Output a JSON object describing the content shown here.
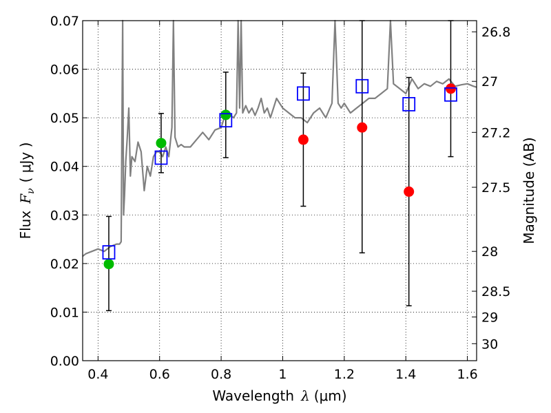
{
  "chart_data": {
    "type": "scatter",
    "x_label_text": "Wavelength",
    "x_label_symbol": "λ",
    "x_label_units": "(μm)",
    "y_label_text": "Flux",
    "y_label_symbol": "F",
    "y_label_subscript": "ν",
    "y_label_units": "( μJy )",
    "right_label": "Magnitude (AB)",
    "xlim": [
      0.35,
      1.63
    ],
    "ylim": [
      0.0,
      0.07
    ],
    "grid": true,
    "x_ticks": [
      {
        "value": 0.4,
        "label": "0.4"
      },
      {
        "value": 0.6,
        "label": "0.6"
      },
      {
        "value": 0.8,
        "label": "0.8"
      },
      {
        "value": 1.0,
        "label": "1"
      },
      {
        "value": 1.2,
        "label": "1.2"
      },
      {
        "value": 1.4,
        "label": "1.4"
      },
      {
        "value": 1.6,
        "label": "1.6"
      }
    ],
    "y_ticks": [
      {
        "value": 0.0,
        "label": "0.00"
      },
      {
        "value": 0.01,
        "label": "0.01"
      },
      {
        "value": 0.02,
        "label": "0.02"
      },
      {
        "value": 0.03,
        "label": "0.03"
      },
      {
        "value": 0.04,
        "label": "0.04"
      },
      {
        "value": 0.05,
        "label": "0.05"
      },
      {
        "value": 0.06,
        "label": "0.06"
      },
      {
        "value": 0.07,
        "label": "0.07"
      }
    ],
    "right_ticks": [
      {
        "flux": 0.0677,
        "label": "26.8"
      },
      {
        "flux": 0.0575,
        "label": "27"
      },
      {
        "flux": 0.047,
        "label": "27.2"
      },
      {
        "flux": 0.0357,
        "label": "27.5"
      },
      {
        "flux": 0.0225,
        "label": "28"
      },
      {
        "flux": 0.0143,
        "label": "28.5"
      },
      {
        "flux": 0.009,
        "label": "29"
      },
      {
        "flux": 0.0035,
        "label": "30"
      }
    ],
    "colors": {
      "model": "#808080",
      "observed_green": "#00bb00",
      "observed_red": "#ff0000",
      "synthetic": "#0000ff",
      "errorbar": "#000000"
    },
    "series": [
      {
        "name": "model spectrum",
        "kind": "line",
        "x": [
          0.35,
          0.36,
          0.38,
          0.4,
          0.42,
          0.44,
          0.46,
          0.47,
          0.475,
          0.48,
          0.483,
          0.486,
          0.49,
          0.495,
          0.5,
          0.505,
          0.51,
          0.52,
          0.53,
          0.54,
          0.55,
          0.56,
          0.57,
          0.58,
          0.59,
          0.6,
          0.61,
          0.62,
          0.63,
          0.64,
          0.645,
          0.65,
          0.655,
          0.66,
          0.67,
          0.68,
          0.7,
          0.72,
          0.74,
          0.76,
          0.78,
          0.8,
          0.81,
          0.82,
          0.83,
          0.84,
          0.85,
          0.855,
          0.86,
          0.865,
          0.87,
          0.88,
          0.89,
          0.9,
          0.91,
          0.92,
          0.93,
          0.94,
          0.95,
          0.96,
          0.97,
          0.98,
          0.99,
          1.0,
          1.02,
          1.04,
          1.06,
          1.08,
          1.1,
          1.12,
          1.14,
          1.16,
          1.17,
          1.18,
          1.19,
          1.2,
          1.22,
          1.24,
          1.26,
          1.28,
          1.3,
          1.32,
          1.34,
          1.35,
          1.36,
          1.38,
          1.4,
          1.42,
          1.44,
          1.46,
          1.48,
          1.5,
          1.52,
          1.54,
          1.56,
          1.58,
          1.6,
          1.62,
          1.63
        ],
        "y": [
          0.0215,
          0.022,
          0.0225,
          0.023,
          0.0225,
          0.0235,
          0.024,
          0.024,
          0.0245,
          0.07,
          0.03,
          0.034,
          0.041,
          0.046,
          0.052,
          0.038,
          0.042,
          0.041,
          0.045,
          0.043,
          0.035,
          0.04,
          0.038,
          0.042,
          0.043,
          0.043,
          0.042,
          0.044,
          0.042,
          0.048,
          0.07,
          0.046,
          0.045,
          0.044,
          0.0445,
          0.044,
          0.044,
          0.0455,
          0.047,
          0.0455,
          0.0475,
          0.048,
          0.05,
          0.051,
          0.0505,
          0.05,
          0.051,
          0.07,
          0.052,
          0.07,
          0.051,
          0.0525,
          0.051,
          0.052,
          0.0505,
          0.052,
          0.054,
          0.051,
          0.052,
          0.05,
          0.052,
          0.054,
          0.053,
          0.052,
          0.051,
          0.05,
          0.05,
          0.049,
          0.051,
          0.052,
          0.05,
          0.053,
          0.07,
          0.053,
          0.052,
          0.053,
          0.051,
          0.052,
          0.053,
          0.054,
          0.054,
          0.055,
          0.056,
          0.07,
          0.057,
          0.056,
          0.055,
          0.058,
          0.056,
          0.057,
          0.0565,
          0.0575,
          0.057,
          0.058,
          0.0565,
          0.0568,
          0.057,
          0.0565,
          0.0563
        ]
      },
      {
        "name": "observed (green)",
        "kind": "points",
        "marker": "circle",
        "x": [
          0.435,
          0.605,
          0.815
        ],
        "y": [
          0.0199,
          0.0448,
          0.0506
        ]
      },
      {
        "name": "observed (red)",
        "kind": "points",
        "marker": "circle",
        "x": [
          1.067,
          1.258,
          1.41,
          1.546
        ],
        "y": [
          0.0455,
          0.048,
          0.0348,
          0.056
        ]
      },
      {
        "name": "synthetic photometry",
        "kind": "points",
        "marker": "open-square",
        "x": [
          0.435,
          0.605,
          0.815,
          1.067,
          1.258,
          1.41,
          1.546
        ],
        "y": [
          0.0223,
          0.0418,
          0.0495,
          0.055,
          0.0565,
          0.0528,
          0.0548
        ]
      },
      {
        "name": "error bars",
        "kind": "errorbar",
        "x": [
          0.435,
          0.605,
          0.815,
          1.067,
          1.258,
          1.41,
          1.546
        ],
        "low": [
          0.0103,
          0.0387,
          0.0418,
          0.0318,
          0.0222,
          0.0113,
          0.042
        ],
        "high": [
          0.0297,
          0.0509,
          0.0594,
          0.0592,
          0.07,
          0.0583,
          0.07
        ]
      }
    ]
  }
}
